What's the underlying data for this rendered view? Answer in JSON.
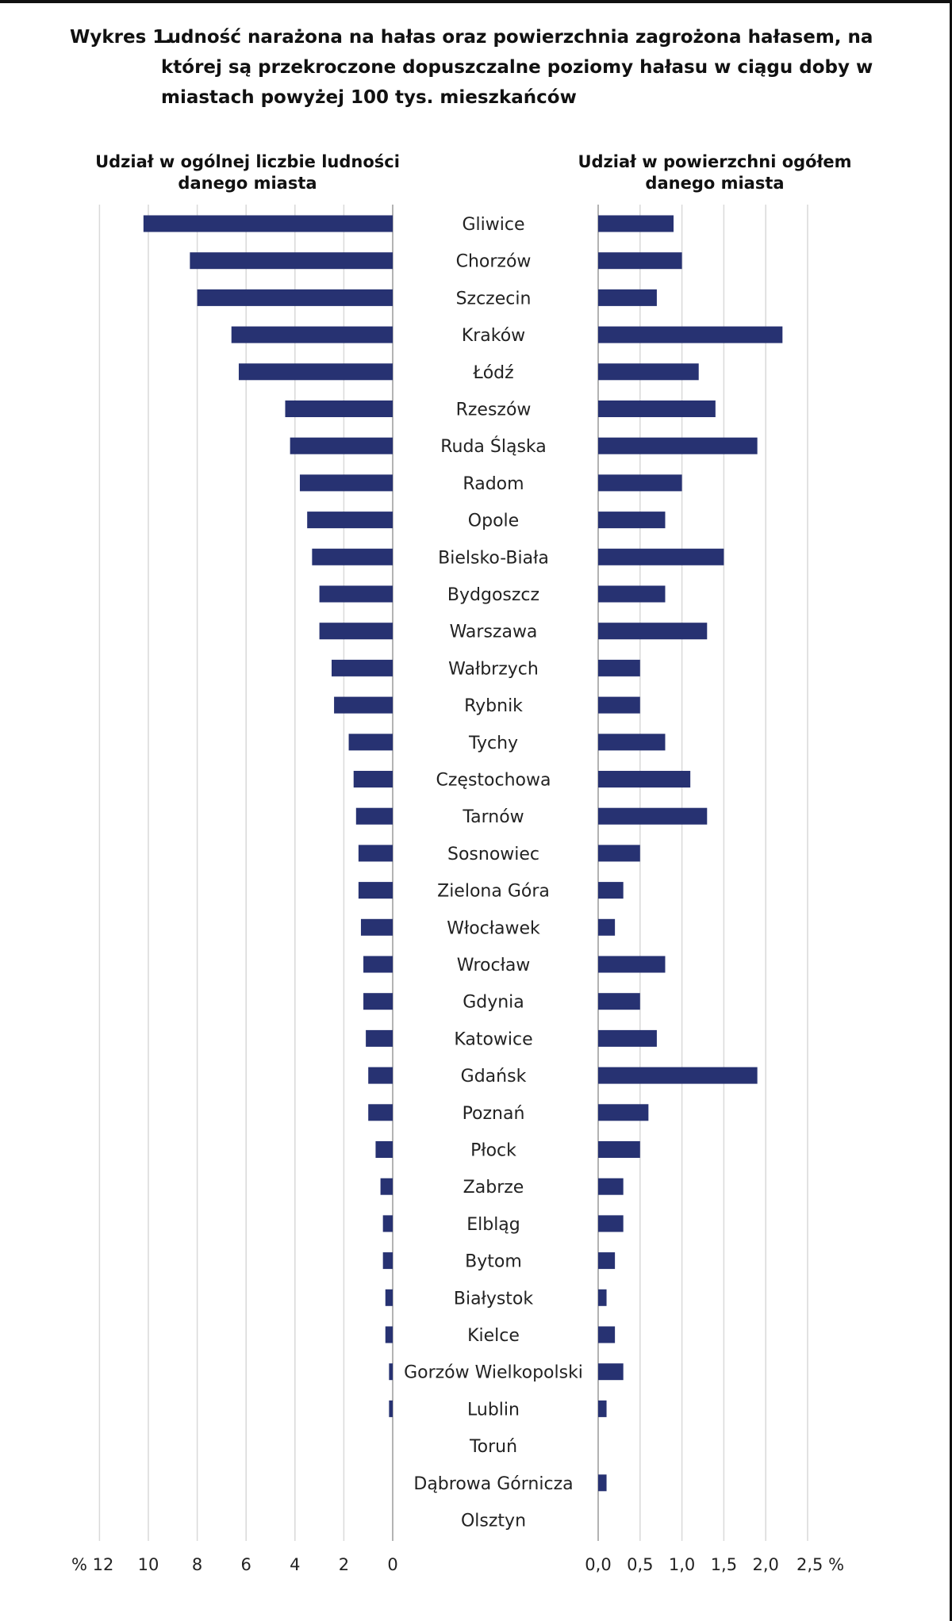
{
  "chart_data": {
    "type": "bar",
    "title_label": "Wykres 1.",
    "title": "Ludność narażona na hałas oraz powierzchnia zagrożona hałasem, na której są przekroczone dopuszczalne poziomy hałasu w ciągu doby w miastach powyżej 100 tys. mieszkańców",
    "bar_color": "#273272",
    "grid_color": "#d9d9d9",
    "categories": [
      "Gliwice",
      "Chorzów",
      "Szczecin",
      "Kraków",
      "Łódź",
      "Rzeszów",
      "Ruda Śląska",
      "Radom",
      "Opole",
      "Bielsko-Biała",
      "Bydgoszcz",
      "Warszawa",
      "Wałbrzych",
      "Rybnik",
      "Tychy",
      "Częstochowa",
      "Tarnów",
      "Sosnowiec",
      "Zielona Góra",
      "Włocławek",
      "Wrocław",
      "Gdynia",
      "Katowice",
      "Gdańsk",
      "Poznań",
      "Płock",
      "Zabrze",
      "Elbląg",
      "Bytom",
      "Białystok",
      "Kielce",
      "Gorzów Wielkopolski",
      "Lublin",
      "Toruń",
      "Dąbrowa Górnicza",
      "Olsztyn"
    ],
    "series": [
      {
        "name": "Udział w ogólnej liczbie ludności danego miasta",
        "values": [
          10.2,
          8.3,
          8.0,
          6.6,
          6.3,
          4.4,
          4.2,
          3.8,
          3.5,
          3.3,
          3.0,
          3.0,
          2.5,
          2.4,
          1.8,
          1.6,
          1.5,
          1.4,
          1.4,
          1.3,
          1.2,
          1.2,
          1.1,
          1.0,
          1.0,
          0.7,
          0.5,
          0.4,
          0.4,
          0.3,
          0.3,
          0.15,
          0.15,
          0,
          0,
          0
        ],
        "ticks": [
          "% 12",
          "10",
          "8",
          "6",
          "4",
          "2",
          "0"
        ],
        "xlim": [
          0,
          12
        ],
        "tick_values": [
          12,
          10,
          8,
          6,
          4,
          2,
          0
        ]
      },
      {
        "name": "Udział w powierzchni ogółem danego miasta",
        "values": [
          0.9,
          1.0,
          0.7,
          2.2,
          1.2,
          1.4,
          1.9,
          1.0,
          0.8,
          1.5,
          0.8,
          1.3,
          0.5,
          0.5,
          0.8,
          1.1,
          1.3,
          0.5,
          0.3,
          0.2,
          0.8,
          0.5,
          0.7,
          1.9,
          0.6,
          0.5,
          0.3,
          0.3,
          0.2,
          0.1,
          0.2,
          0.3,
          0.1,
          0,
          0.1,
          0
        ],
        "ticks": [
          "0,0",
          "0,5",
          "1,0",
          "1,5",
          "2,0",
          "2,5 %"
        ],
        "xlim": [
          0,
          2.5
        ],
        "tick_values": [
          0,
          0.5,
          1.0,
          1.5,
          2.0,
          2.5
        ]
      }
    ],
    "left_title_lines": [
      "Udział w ogólnej liczbie ludności",
      "danego miasta"
    ],
    "right_title_lines": [
      "Udział w powierzchni ogółem",
      "danego miasta"
    ]
  }
}
